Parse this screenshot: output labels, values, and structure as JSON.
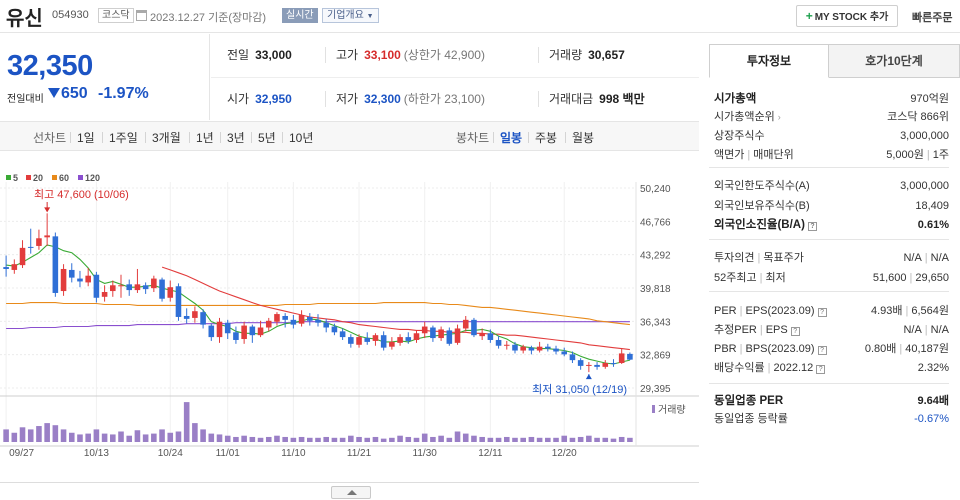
{
  "header": {
    "stock_name": "유신",
    "stock_code": "054930",
    "market": "코스닥",
    "ref_date": "2023.12.27  기준(장마감)",
    "realtime_label": "실시간",
    "company_overview": "기업개요",
    "mystock_plus": "+",
    "mystock_label": "MY STOCK 추가",
    "quick_order": "빠른주문"
  },
  "price": {
    "current": "32,350",
    "diff_label": "전일대비",
    "diff": "650",
    "rate": "-1.97%"
  },
  "info": {
    "prev_close_label": "전일",
    "prev_close": "33,000",
    "high_label": "고가",
    "high": "33,100",
    "upper_limit": "(상한가 42,900)",
    "volume_label": "거래량",
    "volume": "30,657",
    "open_label": "시가",
    "open": "32,950",
    "low_label": "저가",
    "low": "32,300",
    "lower_limit": "(하한가 23,100)",
    "amount_label": "거래대금",
    "amount": "998 백만"
  },
  "toolbar": {
    "line_chart": "선차트",
    "ranges": [
      "1일",
      "1주일",
      "3개월",
      "1년",
      "3년",
      "5년",
      "10년"
    ],
    "candle_chart": "봉차트",
    "periods": [
      "일봉",
      "주봉",
      "월봉"
    ],
    "active_period": "일봉"
  },
  "chart_data": {
    "type": "candlestick",
    "ma_legend": [
      {
        "name": "5",
        "color": "#3aaa35"
      },
      {
        "name": "20",
        "color": "#e23c3c"
      },
      {
        "name": "60",
        "color": "#e88a1a"
      },
      {
        "name": "120",
        "color": "#8a4fcf"
      }
    ],
    "y_ticks": [
      "50,240",
      "46,766",
      "43,292",
      "39,818",
      "36,343",
      "32,869",
      "29,395"
    ],
    "ylim": [
      29395,
      50240
    ],
    "x_labels": [
      "09/27",
      "10/13",
      "10/24",
      "11/01",
      "11/10",
      "11/21",
      "11/30",
      "12/11",
      "12/20"
    ],
    "high_annotation": "최고 47,600 (10/06)",
    "low_annotation": "최저 31,050 (12/19)",
    "volume_label": "거래량",
    "up_color": "#e23c3c",
    "down_color": "#2f6fd6",
    "candles": [
      [
        42000,
        41800,
        43200,
        41000
      ],
      [
        41700,
        42300,
        42800,
        41300
      ],
      [
        42200,
        44000,
        44800,
        41900
      ],
      [
        44100,
        44000,
        46000,
        43400
      ],
      [
        44200,
        45000,
        45900,
        43800
      ],
      [
        45100,
        45300,
        47600,
        44200
      ],
      [
        45200,
        39300,
        45600,
        38900
      ],
      [
        39500,
        41800,
        42300,
        39000
      ],
      [
        41700,
        40900,
        42400,
        40400
      ],
      [
        40800,
        40500,
        41600,
        39900
      ],
      [
        40400,
        41100,
        41900,
        40000
      ],
      [
        41200,
        38800,
        41500,
        38300
      ],
      [
        38900,
        39400,
        40100,
        38400
      ],
      [
        39500,
        40100,
        40600,
        38900
      ],
      [
        40000,
        40100,
        41200,
        38800
      ],
      [
        40200,
        39600,
        40700,
        39000
      ],
      [
        39600,
        40200,
        41800,
        39300
      ],
      [
        40100,
        39700,
        40400,
        39200
      ],
      [
        39800,
        40800,
        41100,
        39400
      ],
      [
        40700,
        38700,
        40900,
        38400
      ],
      [
        38800,
        39900,
        40600,
        38400
      ],
      [
        40000,
        36800,
        40300,
        36400
      ],
      [
        36900,
        36600,
        37700,
        36100
      ],
      [
        36700,
        37400,
        37900,
        36200
      ],
      [
        37300,
        36000,
        37600,
        35600
      ],
      [
        35900,
        34700,
        36100,
        34300
      ],
      [
        34700,
        36300,
        36700,
        34100
      ],
      [
        36200,
        35100,
        36500,
        34500
      ],
      [
        35200,
        34400,
        35800,
        34000
      ],
      [
        34500,
        35900,
        36300,
        34000
      ],
      [
        35800,
        34900,
        36000,
        34100
      ],
      [
        34900,
        35700,
        36400,
        34700
      ],
      [
        35700,
        36400,
        36700,
        35300
      ],
      [
        36300,
        37100,
        37300,
        35900
      ],
      [
        36900,
        36500,
        37200,
        35700
      ],
      [
        36500,
        36000,
        37000,
        35600
      ],
      [
        36100,
        37000,
        37500,
        35800
      ],
      [
        36800,
        36400,
        37200,
        35900
      ],
      [
        36500,
        36200,
        37100,
        35800
      ],
      [
        36200,
        35700,
        36600,
        35200
      ],
      [
        35800,
        35200,
        36100,
        34900
      ],
      [
        35300,
        34700,
        35600,
        34400
      ],
      [
        34700,
        34000,
        35000,
        33600
      ],
      [
        33900,
        34700,
        35000,
        33600
      ],
      [
        34600,
        34200,
        35200,
        33900
      ],
      [
        34300,
        34900,
        35100,
        33800
      ],
      [
        34900,
        33600,
        35300,
        33300
      ],
      [
        33700,
        34200,
        34700,
        33400
      ],
      [
        34100,
        34700,
        35000,
        33800
      ],
      [
        34700,
        34300,
        35200,
        34000
      ],
      [
        34400,
        35100,
        35400,
        34100
      ],
      [
        35100,
        35800,
        36300,
        34600
      ],
      [
        35700,
        34600,
        35900,
        34200
      ],
      [
        34600,
        35500,
        35800,
        34300
      ],
      [
        35400,
        34000,
        35700,
        33800
      ],
      [
        34100,
        35600,
        36000,
        33900
      ],
      [
        35600,
        36500,
        36900,
        35300
      ],
      [
        36500,
        34900,
        36700,
        34700
      ],
      [
        34800,
        35100,
        35600,
        34400
      ],
      [
        35100,
        34400,
        35500,
        34100
      ],
      [
        34400,
        33800,
        34800,
        33500
      ],
      [
        33800,
        33900,
        34300,
        33400
      ],
      [
        33900,
        33300,
        34200,
        33000
      ],
      [
        33300,
        33700,
        33900,
        33000
      ],
      [
        33600,
        33300,
        33800,
        32900
      ],
      [
        33300,
        33700,
        34200,
        33100
      ],
      [
        33700,
        33500,
        34000,
        33200
      ],
      [
        33500,
        33200,
        33800,
        32900
      ],
      [
        33200,
        32900,
        33600,
        32700
      ],
      [
        32900,
        32300,
        33200,
        32000
      ],
      [
        32300,
        31700,
        32500,
        31300
      ],
      [
        31700,
        31800,
        32100,
        31050
      ],
      [
        31800,
        31600,
        32100,
        31300
      ],
      [
        31600,
        32000,
        32300,
        31400
      ],
      [
        32000,
        31900,
        32400,
        31600
      ],
      [
        32000,
        33000,
        33500,
        31900
      ],
      [
        32950,
        32350,
        33100,
        32300
      ]
    ],
    "ma5": [
      42200,
      42100,
      42500,
      43000,
      43500,
      44300,
      44100,
      43700,
      43500,
      42800,
      41900,
      40700,
      40300,
      40500,
      40200,
      39900,
      39900,
      40000,
      40100,
      39800,
      39600,
      39400,
      38800,
      38200,
      37500,
      36300,
      36000,
      35800,
      35300,
      35100,
      35100,
      35000,
      35300,
      35800,
      36100,
      36200,
      36400,
      36600,
      36500,
      36200,
      35900,
      35600,
      35200,
      34800,
      34600,
      34500,
      34200,
      34200,
      34300,
      34200,
      34500,
      34700,
      34800,
      34900,
      35000,
      35100,
      35400,
      35400,
      35500,
      35300,
      34800,
      34500,
      34000,
      33700,
      33600,
      33500,
      33500,
      33400,
      33300,
      33100,
      32700,
      32400,
      32200,
      32000,
      31900,
      32100,
      32300
    ],
    "ma20": [
      null,
      null,
      null,
      null,
      null,
      null,
      null,
      null,
      null,
      null,
      null,
      null,
      null,
      null,
      null,
      null,
      null,
      null,
      null,
      42000,
      41700,
      41400,
      41100,
      40700,
      40300,
      39900,
      39500,
      39200,
      38900,
      38600,
      38300,
      38000,
      37800,
      37600,
      37400,
      37200,
      37000,
      36800,
      36700,
      36600,
      36500,
      36300,
      36200,
      36000,
      35900,
      35800,
      35700,
      35600,
      35500,
      35500,
      35400,
      35400,
      35300,
      35300,
      35200,
      35200,
      35200,
      35100,
      35100,
      35000,
      35000,
      34900,
      34900,
      34800,
      34700,
      34600,
      34500,
      34400,
      34300,
      34200,
      34100,
      33900,
      33800,
      33700,
      33600,
      33500,
      33400
    ],
    "ma60": [
      38200,
      38200,
      38200,
      38300,
      38300,
      38300,
      38300,
      38200,
      38200,
      38200,
      38200,
      38200,
      38100,
      38100,
      38100,
      38100,
      38000,
      38000,
      38000,
      38000,
      38000,
      38000,
      38000,
      38000,
      38000,
      38000,
      38000,
      38000,
      38000,
      38000,
      38000,
      38000,
      38000,
      38000,
      38100,
      38100,
      38100,
      38100,
      38200,
      38200,
      38200,
      38200,
      38200,
      38200,
      38200,
      38200,
      38300,
      38300,
      38300,
      38300,
      38300,
      38300,
      38200,
      38200,
      38100,
      38100,
      38000,
      37900,
      37800,
      37800,
      37700,
      37600,
      37500,
      37400,
      37300,
      37200,
      37100,
      37000,
      36900,
      36800,
      36700,
      36600,
      36400,
      36300,
      36200,
      36100,
      36000
    ],
    "ma120": [
      35600,
      35600,
      35600,
      35700,
      35700,
      35700,
      35700,
      35800,
      35800,
      35800,
      35800,
      35900,
      35900,
      35900,
      35900,
      35900,
      36000,
      36000,
      36000,
      36000,
      36000,
      36000,
      36100,
      36100,
      36100,
      36100,
      36100,
      36100,
      36200,
      36200,
      36200,
      36200,
      36200,
      36200,
      36200,
      36200,
      36300,
      36300,
      36300,
      36300,
      36300,
      36300,
      36300,
      36300,
      36300,
      36300,
      36300,
      36300,
      36300,
      36300,
      36300,
      36300,
      36300,
      36300,
      36300,
      36300,
      36300,
      36300,
      36300,
      36300,
      36300,
      36300,
      36300,
      36300,
      36300,
      36300,
      36300,
      36300,
      36300,
      36300,
      36300,
      36300,
      36300,
      36300,
      36300,
      36300,
      36300
    ],
    "volume_heights": [
      0.3,
      0.22,
      0.35,
      0.3,
      0.38,
      0.45,
      0.4,
      0.3,
      0.22,
      0.18,
      0.2,
      0.3,
      0.2,
      0.18,
      0.25,
      0.15,
      0.28,
      0.18,
      0.2,
      0.3,
      0.22,
      0.25,
      0.95,
      0.45,
      0.3,
      0.2,
      0.18,
      0.15,
      0.12,
      0.15,
      0.12,
      0.1,
      0.12,
      0.15,
      0.12,
      0.1,
      0.12,
      0.1,
      0.1,
      0.12,
      0.1,
      0.1,
      0.15,
      0.12,
      0.1,
      0.12,
      0.08,
      0.1,
      0.15,
      0.12,
      0.1,
      0.2,
      0.12,
      0.15,
      0.1,
      0.25,
      0.2,
      0.15,
      0.12,
      0.1,
      0.1,
      0.12,
      0.1,
      0.1,
      0.12,
      0.1,
      0.1,
      0.1,
      0.15,
      0.1,
      0.12,
      0.15,
      0.1,
      0.1,
      0.08,
      0.12,
      0.1
    ]
  },
  "right_panel": {
    "tab_invest": "투자정보",
    "tab_orderbook": "호가10단계",
    "market_cap_label": "시가총액",
    "market_cap": "970억원",
    "cap_rank_label": "시가총액순위",
    "cap_rank": "코스닥 866위",
    "shares_label": "상장주식수",
    "shares": "3,000,000",
    "par_label": "액면가",
    "unit_label": "매매단위",
    "par": "5,000원",
    "unit": "1주",
    "foreign_limit_label": "외국인한도주식수(A)",
    "foreign_limit": "3,000,000",
    "foreign_hold_label": "외국인보유주식수(B)",
    "foreign_hold": "18,409",
    "foreign_rate_label": "외국인소진율(B/A)",
    "foreign_rate": "0.61%",
    "opinion_label": "투자의견",
    "target_label": "목표주가",
    "opinion": "N/A",
    "target": "N/A",
    "w52_high_label": "52주최고",
    "w52_low_label": "최저",
    "w52_high": "51,600",
    "w52_low": "29,650",
    "per_label": "PER",
    "eps_label": "EPS(2023.09)",
    "per": "4.93배",
    "eps": "6,564원",
    "est_per_label": "추정PER",
    "est_eps_label": "EPS",
    "est_per": "N/A",
    "est_eps": "N/A",
    "pbr_label": "PBR",
    "bps_label": "BPS(2023.09)",
    "pbr": "0.80배",
    "bps": "40,187원",
    "dividend_label": "배당수익률",
    "dividend_date": "2022.12",
    "dividend": "2.32%",
    "sector_per_label": "동일업종 PER",
    "sector_per": "9.64배",
    "sector_change_label": "동일업종 등락률",
    "sector_change": "-0.67%"
  }
}
